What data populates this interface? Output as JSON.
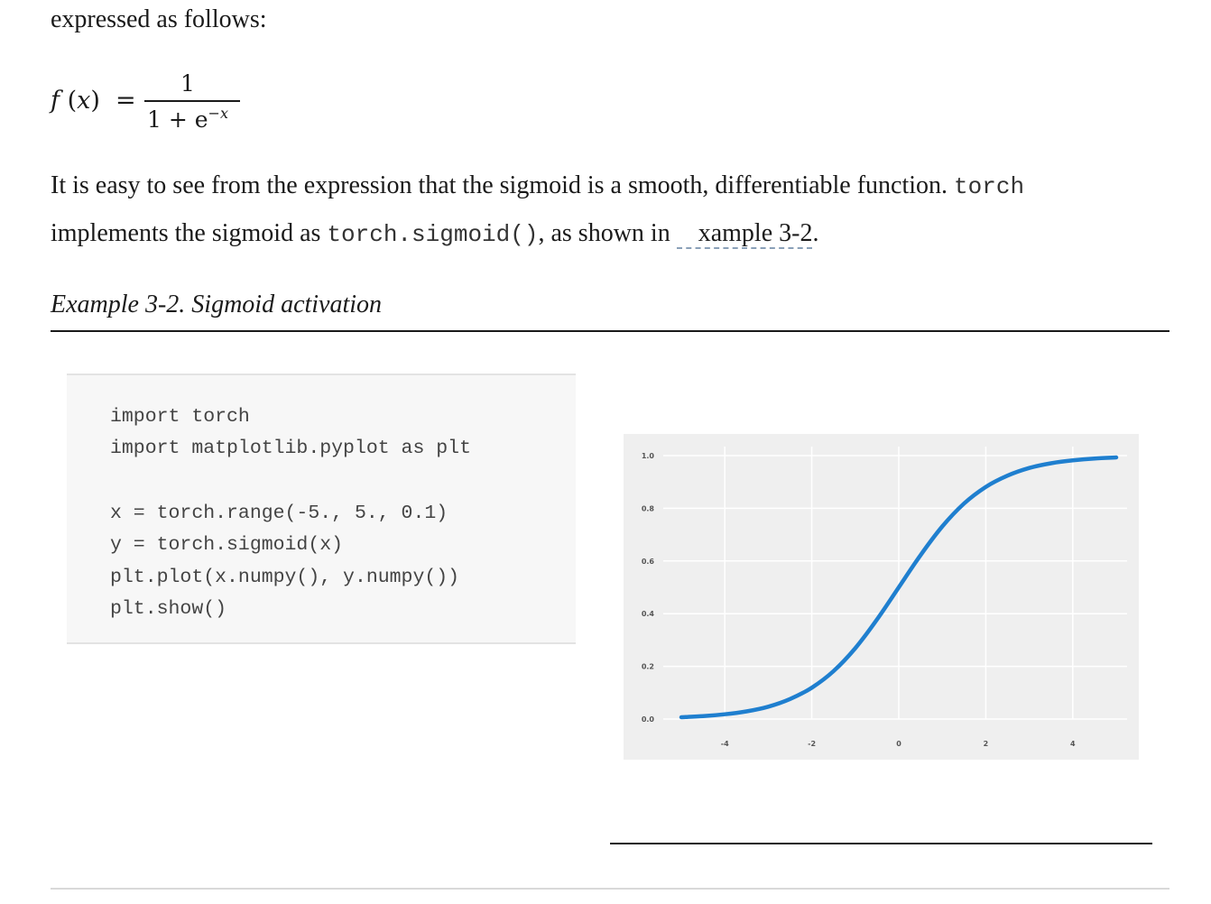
{
  "intro_text": "expressed as follows:",
  "formula": {
    "lhs_fn": "f",
    "lhs_open": " (",
    "lhs_var": "x",
    "lhs_close": ")",
    "equals": "=",
    "numerator": "1",
    "denominator_base": "1 + e",
    "denominator_exponent": "−x"
  },
  "paragraph": {
    "text1": "It is easy to see from the expression that the sigmoid is a smooth, differentiable function.",
    "code1": "torch",
    "text2": "implements the sigmoid as",
    "code2": "torch.sigmoid()",
    "text3": ", as shown in",
    "xref": "xample 3-2",
    "end": "."
  },
  "example_title": "Example 3-2. Sigmoid activation",
  "code_lines": [
    "import torch",
    "import matplotlib.pyplot as plt",
    "",
    "x = torch.range(-5., 5., 0.1)",
    "y = torch.sigmoid(x)",
    "plt.plot(x.numpy(), y.numpy())",
    "plt.show()"
  ],
  "chart_data": {
    "type": "line",
    "title": "",
    "xlabel": "",
    "ylabel": "",
    "xlim": [
      -5,
      5
    ],
    "ylim": [
      0,
      1
    ],
    "x_ticks": [
      -4,
      -2,
      0,
      2,
      4
    ],
    "x_tick_labels": [
      "-4",
      "-2",
      "0",
      "2",
      "4"
    ],
    "y_ticks": [
      0.0,
      0.2,
      0.4,
      0.6,
      0.8,
      1.0
    ],
    "y_tick_labels": [
      "0.0",
      "0.2",
      "0.4",
      "0.6",
      "0.8",
      "1.0"
    ],
    "grid": true,
    "background": "#efefef",
    "line_color": "#1f7fcf",
    "x": [
      -5.0,
      -4.5,
      -4.0,
      -3.5,
      -3.0,
      -2.5,
      -2.0,
      -1.5,
      -1.0,
      -0.5,
      0.0,
      0.5,
      1.0,
      1.5,
      2.0,
      2.5,
      3.0,
      3.5,
      4.0,
      4.5,
      5.0
    ],
    "y": [
      0.007,
      0.011,
      0.018,
      0.029,
      0.047,
      0.076,
      0.119,
      0.182,
      0.269,
      0.378,
      0.5,
      0.622,
      0.731,
      0.818,
      0.881,
      0.924,
      0.953,
      0.971,
      0.982,
      0.989,
      0.993
    ]
  }
}
